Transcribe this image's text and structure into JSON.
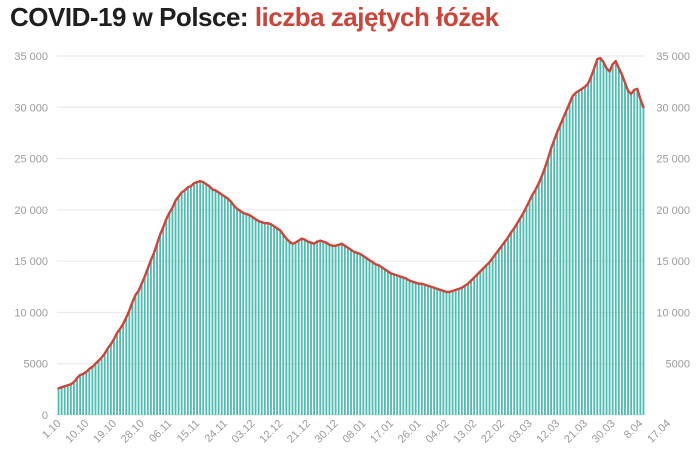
{
  "title": {
    "main": "COVID-19 w Polsce:",
    "accent": "liczba zajętych łóżek"
  },
  "colors": {
    "title": "#1f1f1f",
    "accent": "#c9463d",
    "bar": "#4fbcb2",
    "line": "#c9463d",
    "grid": "#e6e6e6",
    "tick": "#9a9a9a"
  },
  "chart_data": {
    "type": "bar",
    "title": "COVID-19 w Polsce: liczba zajętych łóżek",
    "xlabel": "",
    "ylabel": "",
    "ylim": [
      0,
      35000
    ],
    "grid": true,
    "legend": "none",
    "y_ticks_left": [
      "0",
      "5000",
      "10 000",
      "15 000",
      "20 000",
      "25 000",
      "30 000",
      "35 000"
    ],
    "y_ticks_right": [
      "5000",
      "10 000",
      "15 000",
      "20 000",
      "25 000",
      "30 000",
      "35 000"
    ],
    "x_tick_labels": [
      "1.10",
      "10.10",
      "19.10",
      "28.10",
      "06.11",
      "15.11",
      "24.11",
      "03.12",
      "12.12",
      "21.12",
      "30.12",
      "08.01",
      "17.01",
      "26.01",
      "04.02",
      "13.02",
      "22.02",
      "03.03",
      "12.03",
      "21.03",
      "30.03",
      "8.04",
      "17.04"
    ],
    "x_start": "2020-10-01",
    "x_end": "2021-04-21",
    "series": [
      {
        "values": [
          2600,
          2700,
          2800,
          2900,
          3000,
          3200,
          3600,
          3900,
          4000,
          4200,
          4500,
          4700,
          5000,
          5300,
          5600,
          6000,
          6500,
          6900,
          7400,
          8000,
          8400,
          8900,
          9500,
          10200,
          11000,
          11700,
          12100,
          12800,
          13500,
          14300,
          15100,
          15800,
          16700,
          17600,
          18300,
          19100,
          19700,
          20200,
          20900,
          21300,
          21700,
          21900,
          22200,
          22300,
          22600,
          22700,
          22800,
          22700,
          22500,
          22300,
          22000,
          21900,
          21700,
          21500,
          21300,
          21100,
          20800,
          20400,
          20100,
          19900,
          19700,
          19600,
          19500,
          19300,
          19100,
          18900,
          18800,
          18700,
          18700,
          18600,
          18400,
          18200,
          18000,
          17600,
          17200,
          16900,
          16700,
          16800,
          17000,
          17200,
          17100,
          16900,
          16800,
          16700,
          16900,
          17000,
          16900,
          16800,
          16600,
          16500,
          16500,
          16600,
          16700,
          16500,
          16300,
          16100,
          15900,
          15800,
          15700,
          15500,
          15300,
          15100,
          14900,
          14700,
          14600,
          14400,
          14200,
          14000,
          13800,
          13700,
          13600,
          13500,
          13400,
          13300,
          13100,
          13000,
          12900,
          12800,
          12800,
          12700,
          12600,
          12500,
          12400,
          12300,
          12200,
          12100,
          12000,
          12000,
          12100,
          12200,
          12300,
          12400,
          12600,
          12800,
          13100,
          13400,
          13700,
          14000,
          14300,
          14600,
          14900,
          15300,
          15700,
          16100,
          16500,
          16900,
          17300,
          17800,
          18200,
          18700,
          19200,
          19700,
          20300,
          20900,
          21500,
          22000,
          22600,
          23300,
          24100,
          25000,
          26000,
          26800,
          27600,
          28300,
          29000,
          29700,
          30400,
          31100,
          31400,
          31600,
          31800,
          32000,
          32300,
          33000,
          33800,
          34700,
          34800,
          34400,
          33800,
          33500,
          34200,
          34500,
          33800,
          33200,
          32400,
          31600,
          31300,
          31700,
          31800,
          30800,
          30000
        ]
      }
    ]
  }
}
